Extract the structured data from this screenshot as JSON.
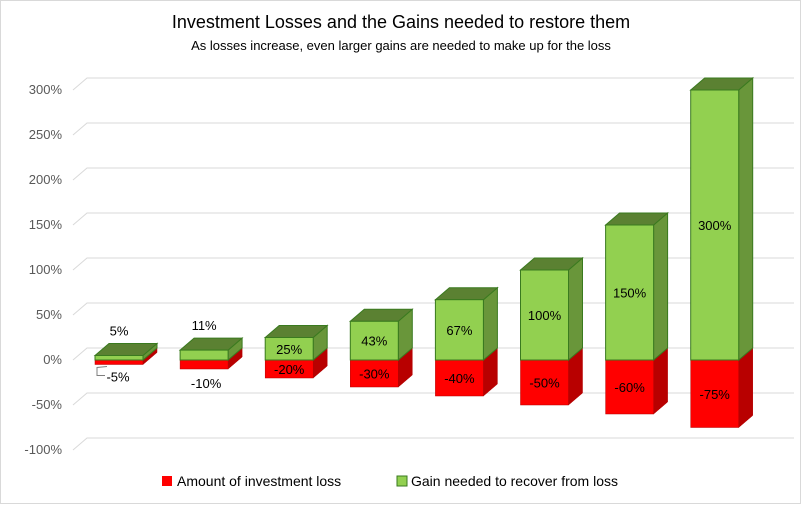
{
  "chart_data": {
    "type": "bar",
    "title": "Investment Losses and the Gains needed to restore them",
    "subtitle": "As losses increase, even larger gains are needed to make up for the loss",
    "xlabel": "",
    "ylabel": "",
    "ylim": [
      -100,
      300
    ],
    "yticks": [
      300,
      250,
      200,
      150,
      100,
      50,
      0,
      -50,
      -100
    ],
    "ytick_labels": [
      "300%",
      "250%",
      "200%",
      "150%",
      "100%",
      "50%",
      "0%",
      "-50%",
      "-100%"
    ],
    "grid": true,
    "legend_position": "bottom",
    "series": [
      {
        "name": "Amount of investment loss",
        "color": "#ff0000",
        "values": [
          -5,
          -10,
          -20,
          -30,
          -40,
          -50,
          -60,
          -75
        ],
        "labels": [
          "-5%",
          "-10%",
          "-20%",
          "-30%",
          "-40%",
          "-50%",
          "-60%",
          "-75%"
        ]
      },
      {
        "name": "Gain needed to recover from loss",
        "color": "#92d050",
        "values": [
          5,
          11,
          25,
          43,
          67,
          100,
          150,
          300
        ],
        "labels": [
          "5%",
          "11%",
          "25%",
          "43%",
          "67%",
          "100%",
          "150%",
          "300%"
        ]
      }
    ]
  }
}
